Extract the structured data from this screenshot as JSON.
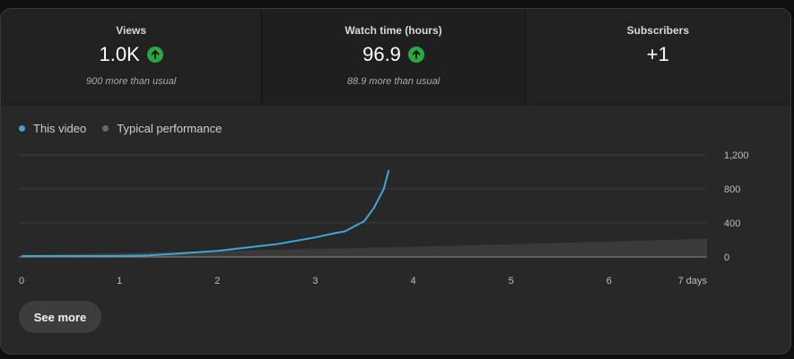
{
  "metrics": [
    {
      "title": "Views",
      "value": "1.0K",
      "trend_icon": "arrow-up-icon",
      "sub": "900 more than usual"
    },
    {
      "title": "Watch time (hours)",
      "value": "96.9",
      "trend_icon": "arrow-up-icon",
      "sub": "88.9 more than usual"
    },
    {
      "title": "Subscribers",
      "value": "+1",
      "trend_icon": "",
      "sub": ""
    }
  ],
  "colors": {
    "this_video": "#3ea6d6",
    "typical": "#6a6a6a",
    "trend_up": "#2ba640"
  },
  "legend": {
    "this_video": "This video",
    "typical": "Typical performance"
  },
  "chart_data": {
    "type": "line",
    "title": "",
    "xlabel": "",
    "ylabel": "",
    "x_ticks": [
      "0",
      "1",
      "2",
      "3",
      "4",
      "5",
      "6",
      "7 days"
    ],
    "y_ticks": [
      "0",
      "400",
      "800",
      "1,200"
    ],
    "xlim": [
      0,
      7
    ],
    "ylim": [
      0,
      1200
    ],
    "grid": true,
    "legend_position": "top-left",
    "series": [
      {
        "name": "This video",
        "kind": "line",
        "x": [
          0,
          0.5,
          1.0,
          1.3,
          1.6,
          2.0,
          2.3,
          2.6,
          2.8,
          3.0,
          3.2,
          3.3,
          3.4,
          3.5,
          3.6,
          3.7,
          3.75
        ],
        "y": [
          10,
          10,
          12,
          18,
          40,
          70,
          110,
          150,
          190,
          230,
          280,
          300,
          360,
          420,
          580,
          800,
          1020
        ]
      },
      {
        "name": "Typical performance",
        "kind": "area",
        "x": [
          0,
          1,
          2,
          3,
          4,
          5,
          6,
          7
        ],
        "y": [
          25,
          45,
          70,
          95,
          120,
          150,
          180,
          215
        ]
      }
    ]
  },
  "see_more": "See more"
}
